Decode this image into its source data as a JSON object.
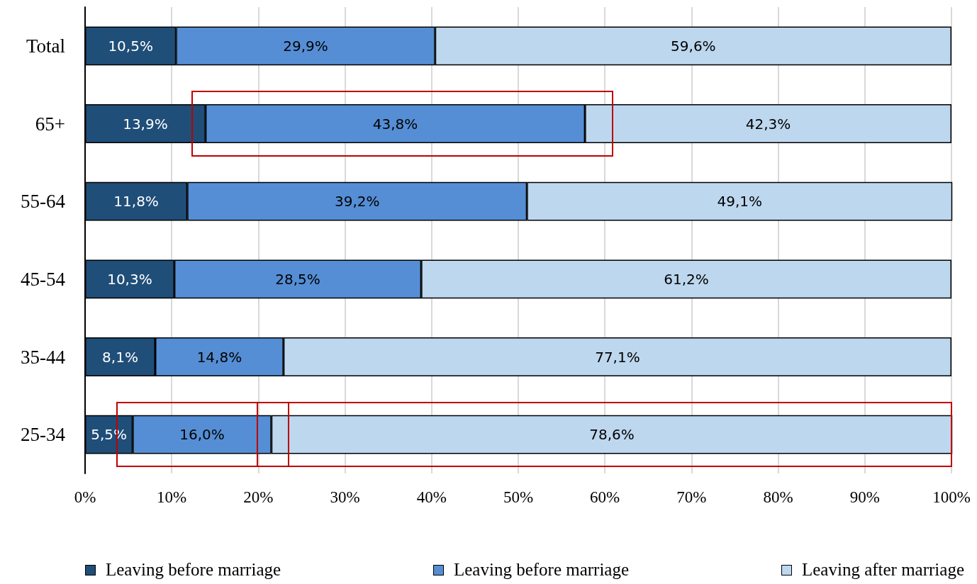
{
  "chart_data": {
    "type": "bar",
    "orientation": "horizontal",
    "stacked": true,
    "categories": [
      "Total",
      "65+",
      "55-64",
      "45-54",
      "35-44",
      "25-34"
    ],
    "series": [
      {
        "name": "Leaving before marriage",
        "color": "#1f4e79",
        "values": [
          10.5,
          13.9,
          11.8,
          10.3,
          8.1,
          5.5
        ],
        "value_labels": [
          "10,5%",
          "13,9%",
          "11,8%",
          "10,3%",
          "8,1%",
          "5,5%"
        ]
      },
      {
        "name": "Leaving before marriage",
        "color": "#558ed5",
        "values": [
          29.9,
          43.8,
          39.2,
          28.5,
          14.8,
          16.0
        ],
        "value_labels": [
          "29,9%",
          "43,8%",
          "39,2%",
          "28,5%",
          "14,8%",
          "16,0%"
        ]
      },
      {
        "name": "Leaving after marriage",
        "color": "#bdd7ee",
        "values": [
          59.6,
          42.3,
          49.1,
          61.2,
          77.1,
          78.6
        ],
        "value_labels": [
          "59,6%",
          "42,3%",
          "49,1%",
          "61,2%",
          "77,1%",
          "78,6%"
        ]
      }
    ],
    "xlim": [
      0,
      100
    ],
    "xticks": [
      {
        "value": 0,
        "label": "0%"
      },
      {
        "value": 10,
        "label": "10%"
      },
      {
        "value": 20,
        "label": "20%"
      },
      {
        "value": 30,
        "label": "30%"
      },
      {
        "value": 40,
        "label": "40%"
      },
      {
        "value": 50,
        "label": "50%"
      },
      {
        "value": 60,
        "label": "60%"
      },
      {
        "value": 70,
        "label": "70%"
      },
      {
        "value": 80,
        "label": "80%"
      },
      {
        "value": 90,
        "label": "90%"
      },
      {
        "value": 100,
        "label": "100%"
      }
    ],
    "grid": "x",
    "legend": "bottom"
  }
}
